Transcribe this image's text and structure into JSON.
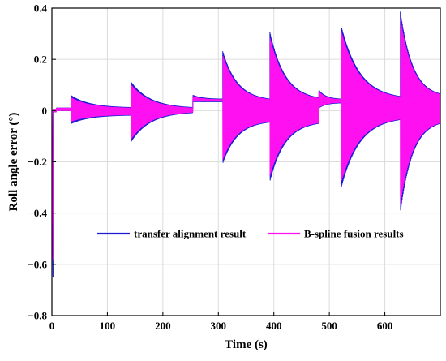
{
  "chart_data": {
    "type": "line",
    "title": "",
    "xlabel": "Time (s)",
    "ylabel": "Roll angle error (°)",
    "xlim": [
      0,
      700
    ],
    "ylim": [
      -0.8,
      0.4
    ],
    "xticks": [
      0,
      100,
      200,
      300,
      400,
      500,
      600
    ],
    "xtick_labels": [
      "0",
      "100",
      "200",
      "300",
      "400",
      "500",
      "600"
    ],
    "yticks": [
      -0.8,
      -0.6,
      -0.4,
      -0.2,
      0,
      0.2,
      0.4
    ],
    "ytick_labels": [
      "−0.8",
      "−0.6",
      "−0.4",
      "−0.2",
      "0",
      "0.2",
      "0.4"
    ],
    "grid": true,
    "legend_position": "lower-center",
    "series": [
      {
        "name": "transfer alignment result",
        "color": "#1c1cd6",
        "envelope": [
          {
            "t": [
              0,
              2
            ],
            "upper": [
              -0.02,
              -0.65
            ],
            "lower": [
              -0.02,
              -0.65
            ]
          },
          {
            "t": [
              2,
              8
            ],
            "upper": [
              0.005,
              0.005
            ],
            "lower": [
              -0.005,
              -0.005
            ]
          },
          {
            "t": [
              8,
              35
            ],
            "upper": [
              0.01,
              0.01
            ],
            "lower": [
              0.0,
              0.0
            ]
          },
          {
            "t": [
              35,
              143
            ],
            "upper": [
              0.058,
              0.012
            ],
            "lower": [
              -0.05,
              -0.018
            ]
          },
          {
            "t": [
              143,
              254
            ],
            "upper": [
              0.11,
              0.012
            ],
            "lower": [
              -0.12,
              -0.008
            ]
          },
          {
            "t": [
              254,
              308
            ],
            "upper": [
              0.06,
              0.045
            ],
            "lower": [
              0.035,
              0.035
            ]
          },
          {
            "t": [
              308,
              393
            ],
            "upper": [
              0.23,
              0.045
            ],
            "lower": [
              -0.205,
              -0.045
            ]
          },
          {
            "t": [
              393,
              481
            ],
            "upper": [
              0.305,
              0.05
            ],
            "lower": [
              -0.275,
              -0.05
            ]
          },
          {
            "t": [
              481,
              522
            ],
            "upper": [
              0.08,
              0.045
            ],
            "lower": [
              0.01,
              0.03
            ]
          },
          {
            "t": [
              522,
              628
            ],
            "upper": [
              0.325,
              0.055
            ],
            "lower": [
              -0.295,
              -0.035
            ]
          },
          {
            "t": [
              628,
              700
            ],
            "upper": [
              0.385,
              0.065
            ],
            "lower": [
              -0.395,
              -0.05
            ]
          }
        ]
      },
      {
        "name": "B-spline fusion results",
        "color": "#ff10f0",
        "envelope": [
          {
            "t": [
              0,
              2
            ],
            "upper": [
              -0.02,
              -0.58
            ],
            "lower": [
              -0.02,
              -0.58
            ]
          },
          {
            "t": [
              2,
              8
            ],
            "upper": [
              0.005,
              0.005
            ],
            "lower": [
              -0.005,
              -0.005
            ]
          },
          {
            "t": [
              8,
              35
            ],
            "upper": [
              0.01,
              0.01
            ],
            "lower": [
              0.0,
              0.0
            ]
          },
          {
            "t": [
              35,
              143
            ],
            "upper": [
              0.05,
              0.01
            ],
            "lower": [
              -0.042,
              -0.016
            ]
          },
          {
            "t": [
              143,
              254
            ],
            "upper": [
              0.1,
              0.01
            ],
            "lower": [
              -0.11,
              -0.006
            ]
          },
          {
            "t": [
              254,
              308
            ],
            "upper": [
              0.055,
              0.043
            ],
            "lower": [
              0.037,
              0.037
            ]
          },
          {
            "t": [
              308,
              393
            ],
            "upper": [
              0.215,
              0.043
            ],
            "lower": [
              -0.19,
              -0.043
            ]
          },
          {
            "t": [
              393,
              481
            ],
            "upper": [
              0.285,
              0.048
            ],
            "lower": [
              -0.255,
              -0.048
            ]
          },
          {
            "t": [
              481,
              522
            ],
            "upper": [
              0.075,
              0.043
            ],
            "lower": [
              0.012,
              0.032
            ]
          },
          {
            "t": [
              522,
              628
            ],
            "upper": [
              0.305,
              0.053
            ],
            "lower": [
              -0.275,
              -0.033
            ]
          },
          {
            "t": [
              628,
              700
            ],
            "upper": [
              0.36,
              0.063
            ],
            "lower": [
              -0.365,
              -0.048
            ]
          }
        ]
      }
    ]
  }
}
